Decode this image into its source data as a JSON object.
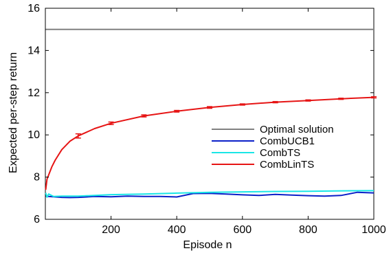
{
  "chart_data": {
    "type": "line",
    "title": "",
    "xlabel": "Episode n",
    "ylabel": "Expected per-step return",
    "xlim": [
      0,
      1000
    ],
    "ylim": [
      6,
      16
    ],
    "xticks": [
      200,
      400,
      600,
      800,
      1000
    ],
    "yticks": [
      6,
      8,
      10,
      12,
      14,
      16
    ],
    "grid": false,
    "legend_position": "right-center",
    "series": [
      {
        "name": "Optimal solution",
        "color": "#808080",
        "x": [
          1,
          1000
        ],
        "y": [
          15.0,
          15.0
        ]
      },
      {
        "name": "CombUCB1",
        "color": "#0a1fc8",
        "x": [
          1,
          10,
          25,
          50,
          75,
          100,
          150,
          200,
          250,
          300,
          350,
          400,
          450,
          500,
          550,
          600,
          650,
          700,
          750,
          800,
          850,
          900,
          950,
          1000
        ],
        "y": [
          7.1,
          7.08,
          7.07,
          7.04,
          7.03,
          7.04,
          7.08,
          7.07,
          7.1,
          7.08,
          7.08,
          7.06,
          7.22,
          7.23,
          7.2,
          7.16,
          7.13,
          7.18,
          7.15,
          7.12,
          7.1,
          7.13,
          7.28,
          7.25
        ]
      },
      {
        "name": "CombTS",
        "color": "#19e6e6",
        "x": [
          1,
          5,
          10,
          25,
          50,
          75,
          100,
          150,
          200,
          300,
          400,
          500,
          600,
          700,
          800,
          900,
          1000
        ],
        "y": [
          7.25,
          7.05,
          7.2,
          7.08,
          7.1,
          7.1,
          7.1,
          7.13,
          7.17,
          7.2,
          7.24,
          7.28,
          7.3,
          7.32,
          7.33,
          7.35,
          7.36
        ]
      },
      {
        "name": "CombLinTS",
        "color": "#e61414",
        "x": [
          1,
          5,
          10,
          20,
          30,
          50,
          75,
          100,
          150,
          200,
          300,
          400,
          500,
          600,
          700,
          800,
          900,
          1000
        ],
        "y": [
          7.4,
          7.9,
          8.1,
          8.5,
          8.8,
          9.3,
          9.7,
          9.95,
          10.3,
          10.55,
          10.9,
          11.12,
          11.3,
          11.44,
          11.55,
          11.63,
          11.71,
          11.78
        ],
        "errorbars": [
          {
            "x": 100,
            "y": 9.95,
            "err": 0.1
          },
          {
            "x": 200,
            "y": 10.55,
            "err": 0.06
          },
          {
            "x": 300,
            "y": 10.9,
            "err": 0.05
          },
          {
            "x": 400,
            "y": 11.12,
            "err": 0.04
          },
          {
            "x": 500,
            "y": 11.3,
            "err": 0.04
          },
          {
            "x": 600,
            "y": 11.44,
            "err": 0.03
          },
          {
            "x": 700,
            "y": 11.55,
            "err": 0.03
          },
          {
            "x": 800,
            "y": 11.63,
            "err": 0.03
          },
          {
            "x": 900,
            "y": 11.71,
            "err": 0.03
          },
          {
            "x": 1000,
            "y": 11.78,
            "err": 0.03
          }
        ]
      }
    ]
  }
}
